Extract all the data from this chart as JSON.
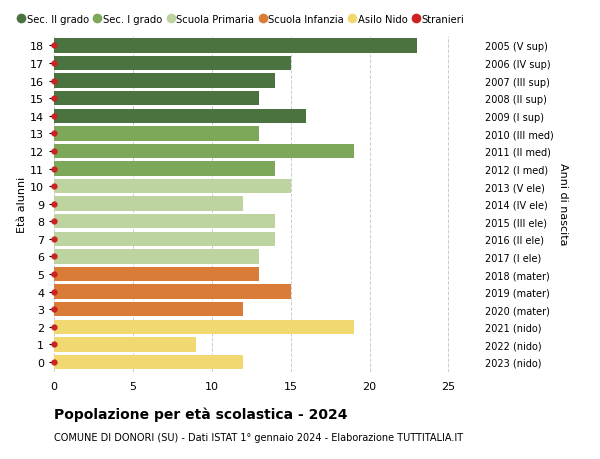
{
  "ages": [
    18,
    17,
    16,
    15,
    14,
    13,
    12,
    11,
    10,
    9,
    8,
    7,
    6,
    5,
    4,
    3,
    2,
    1,
    0
  ],
  "values": [
    23,
    15,
    14,
    13,
    16,
    13,
    19,
    14,
    15,
    12,
    14,
    14,
    13,
    13,
    15,
    12,
    19,
    9,
    12
  ],
  "years": [
    "2005 (V sup)",
    "2006 (IV sup)",
    "2007 (III sup)",
    "2008 (II sup)",
    "2009 (I sup)",
    "2010 (III med)",
    "2011 (II med)",
    "2012 (I med)",
    "2013 (V ele)",
    "2014 (IV ele)",
    "2015 (III ele)",
    "2016 (II ele)",
    "2017 (I ele)",
    "2018 (mater)",
    "2019 (mater)",
    "2020 (mater)",
    "2021 (nido)",
    "2022 (nido)",
    "2023 (nido)"
  ],
  "bar_colors": [
    "#4a7340",
    "#4a7340",
    "#4a7340",
    "#4a7340",
    "#4a7340",
    "#7da85a",
    "#7da85a",
    "#7da85a",
    "#bdd4a0",
    "#bdd4a0",
    "#bdd4a0",
    "#bdd4a0",
    "#bdd4a0",
    "#d97c38",
    "#d97c38",
    "#d97c38",
    "#f2d870",
    "#f2d870",
    "#f2d870"
  ],
  "stranieri_color": "#cc2222",
  "legend_labels": [
    "Sec. II grado",
    "Sec. I grado",
    "Scuola Primaria",
    "Scuola Infanzia",
    "Asilo Nido",
    "Stranieri"
  ],
  "legend_colors": [
    "#4a7340",
    "#7da85a",
    "#bdd4a0",
    "#d97c38",
    "#f2d870",
    "#cc2222"
  ],
  "title_bold": "Popolazione per età scolastica - 2024",
  "subtitle": "COMUNE DI DONORI (SU) - Dati ISTAT 1° gennaio 2024 - Elaborazione TUTTITALIA.IT",
  "ylabel_left": "Età alunni",
  "ylabel_right": "Anni di nascita",
  "xlim": [
    0,
    27
  ],
  "xticks": [
    0,
    5,
    10,
    15,
    20,
    25
  ],
  "bg_color": "#ffffff",
  "grid_color": "#cccccc",
  "bar_height": 0.82
}
